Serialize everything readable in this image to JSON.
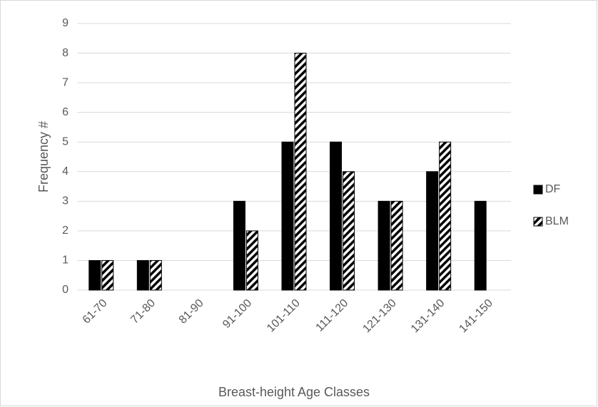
{
  "chart_data": {
    "type": "bar",
    "categories": [
      "61-70",
      "71-80",
      "81-90",
      "91-100",
      "101-110",
      "111-120",
      "121-130",
      "131-140",
      "141-150"
    ],
    "series": [
      {
        "name": "DF",
        "color": "#000000",
        "values": [
          1,
          1,
          0,
          3,
          5,
          5,
          3,
          4,
          3
        ]
      },
      {
        "name": "BLM",
        "color": "#000000",
        "pattern": "diagonal-stripes",
        "values": [
          1,
          1,
          0,
          2,
          8,
          4,
          3,
          5,
          0
        ]
      }
    ],
    "y_label": "Frequency #",
    "x_label": "Breast-height Age Classes",
    "ylim": [
      0,
      9
    ],
    "yticks": [
      0,
      1,
      2,
      3,
      4,
      5,
      6,
      7,
      8,
      9
    ],
    "grid": true,
    "legend": "right"
  }
}
